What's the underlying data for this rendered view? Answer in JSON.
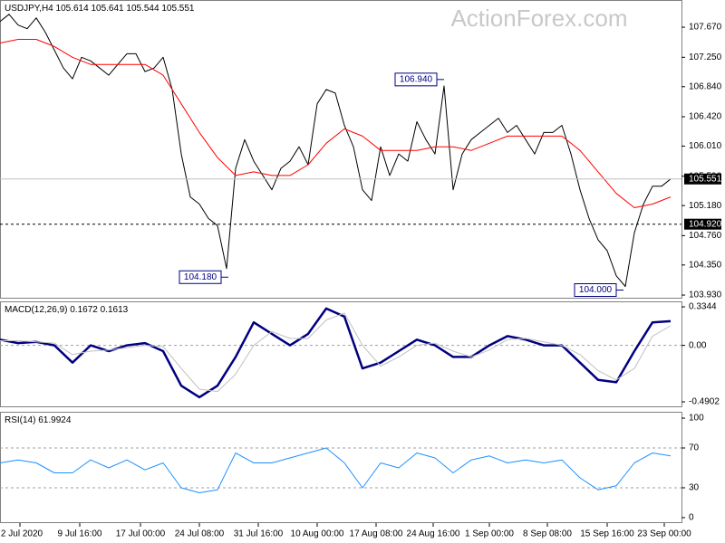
{
  "watermark": "ActionForex.com",
  "chart_data": [
    {
      "type": "line",
      "symbol": "USDJPY,H4",
      "ohlc": [
        105.614,
        105.641,
        105.544,
        105.551
      ],
      "xlim": [
        0,
        376
      ],
      "ylim": [
        103.88,
        108.05
      ],
      "yticks": [
        {
          "value": 107.67,
          "label": "107.670"
        },
        {
          "value": 107.25,
          "label": "107.250"
        },
        {
          "value": 106.84,
          "label": "106.840"
        },
        {
          "value": 106.42,
          "label": "106.420"
        },
        {
          "value": 106.01,
          "label": "106.010"
        },
        {
          "value": 105.59,
          "label": "105.590"
        },
        {
          "value": 105.18,
          "label": "105.180"
        },
        {
          "value": 104.76,
          "label": "104.760"
        },
        {
          "value": 104.35,
          "label": "104.350"
        },
        {
          "value": 103.93,
          "label": "103.930"
        }
      ],
      "current_price": 105.551,
      "level": {
        "value": 104.92,
        "label": "104.920"
      },
      "annotations": [
        {
          "x": 245,
          "value": 106.94,
          "label": "106.940"
        },
        {
          "x": 126,
          "value": 104.18,
          "label": "104.180"
        },
        {
          "x": 344,
          "value": 104,
          "label": "104.000"
        }
      ],
      "series": [
        {
          "color": "#000000",
          "x": [
            0,
            5,
            10,
            15,
            20,
            25,
            30,
            35,
            40,
            45,
            50,
            55,
            60,
            65,
            70,
            75,
            80,
            85,
            90,
            95,
            100,
            105,
            110,
            115,
            120,
            125,
            130,
            135,
            140,
            145,
            150,
            155,
            160,
            165,
            170,
            175,
            180,
            185,
            190,
            195,
            200,
            205,
            210,
            215,
            220,
            225,
            230,
            235,
            240,
            245,
            250,
            255,
            260,
            265,
            270,
            275,
            280,
            285,
            290,
            295,
            300,
            305,
            310,
            315,
            320,
            325,
            330,
            335,
            340,
            345,
            350,
            355,
            360,
            365,
            370
          ],
          "values": [
            107.75,
            107.85,
            107.7,
            107.65,
            107.8,
            107.6,
            107.35,
            107.1,
            106.95,
            107.25,
            107.2,
            107.1,
            107.0,
            107.15,
            107.3,
            107.3,
            107.05,
            107.1,
            107.25,
            106.8,
            105.9,
            105.3,
            105.2,
            105.0,
            104.9,
            104.3,
            105.7,
            106.1,
            105.8,
            105.6,
            105.4,
            105.7,
            105.8,
            106.0,
            105.75,
            106.6,
            106.8,
            106.75,
            106.3,
            106.0,
            105.4,
            105.25,
            106.0,
            105.6,
            105.9,
            105.8,
            106.35,
            106.1,
            105.9,
            106.85,
            105.4,
            105.9,
            106.1,
            106.2,
            106.3,
            106.4,
            106.2,
            106.3,
            106.1,
            105.9,
            106.2,
            106.2,
            106.3,
            105.9,
            105.4,
            105.0,
            104.7,
            104.55,
            104.2,
            104.05,
            104.8,
            105.2,
            105.45,
            105.45,
            105.551
          ]
        },
        {
          "color": "#ff0000",
          "x": [
            0,
            10,
            20,
            30,
            40,
            50,
            60,
            70,
            80,
            90,
            100,
            110,
            120,
            130,
            140,
            150,
            160,
            170,
            180,
            190,
            200,
            210,
            220,
            230,
            240,
            250,
            260,
            270,
            280,
            290,
            300,
            310,
            320,
            330,
            340,
            350,
            360,
            370
          ],
          "values": [
            107.45,
            107.5,
            107.5,
            107.4,
            107.25,
            107.15,
            107.15,
            107.15,
            107.15,
            107.0,
            106.6,
            106.2,
            105.85,
            105.6,
            105.65,
            105.6,
            105.6,
            105.75,
            106.05,
            106.25,
            106.15,
            105.95,
            105.95,
            105.95,
            106.0,
            106.0,
            105.95,
            106.05,
            106.15,
            106.15,
            106.15,
            106.15,
            105.95,
            105.65,
            105.35,
            105.15,
            105.2,
            105.3
          ]
        }
      ]
    },
    {
      "type": "line",
      "label": "MACD(12,26,9)",
      "readings": [
        0.1672,
        0.1613
      ],
      "xlim": [
        0,
        376
      ],
      "ylim": [
        -0.537,
        0.382
      ],
      "yticks": [
        0.3344,
        {
          "value": 0,
          "label": "0.00"
        },
        -0.4902
      ],
      "levels": [
        0
      ],
      "series": [
        {
          "color": "#000080",
          "x": [
            0,
            10,
            20,
            30,
            40,
            50,
            60,
            70,
            80,
            90,
            100,
            110,
            120,
            130,
            140,
            150,
            160,
            170,
            180,
            190,
            200,
            210,
            220,
            230,
            240,
            250,
            260,
            270,
            280,
            290,
            300,
            310,
            320,
            330,
            340,
            350,
            360,
            370
          ],
          "values": [
            0.05,
            0.02,
            0.03,
            0.0,
            -0.15,
            0.0,
            -0.05,
            0.0,
            0.02,
            -0.05,
            -0.35,
            -0.45,
            -0.35,
            -0.1,
            0.2,
            0.1,
            0.0,
            0.1,
            0.32,
            0.25,
            -0.2,
            -0.15,
            -0.05,
            0.05,
            0.0,
            -0.1,
            -0.1,
            0.0,
            0.08,
            0.05,
            0.0,
            0.0,
            -0.15,
            -0.3,
            -0.32,
            -0.05,
            0.2,
            0.21
          ]
        },
        {
          "color": "#c0c0c0",
          "x": [
            0,
            10,
            20,
            30,
            40,
            50,
            60,
            70,
            80,
            90,
            100,
            110,
            120,
            130,
            140,
            150,
            160,
            170,
            180,
            190,
            200,
            210,
            220,
            230,
            240,
            250,
            260,
            270,
            280,
            290,
            300,
            310,
            320,
            330,
            340,
            350,
            360,
            370
          ],
          "values": [
            0.04,
            0.04,
            0.03,
            0.02,
            -0.08,
            -0.05,
            -0.04,
            -0.02,
            0.0,
            -0.01,
            -0.2,
            -0.38,
            -0.4,
            -0.25,
            0.0,
            0.12,
            0.06,
            0.06,
            0.22,
            0.28,
            0.0,
            -0.18,
            -0.1,
            0.0,
            0.02,
            -0.05,
            -0.1,
            -0.04,
            0.05,
            0.06,
            0.03,
            0.0,
            -0.08,
            -0.22,
            -0.3,
            -0.2,
            0.08,
            0.17
          ]
        }
      ]
    },
    {
      "type": "line",
      "label": "RSI(14)",
      "readings": [
        61.9924
      ],
      "xlim": [
        0,
        376
      ],
      "ylim": [
        -5.5,
        106.4
      ],
      "yticks": [
        100,
        70,
        30,
        0
      ],
      "levels": [
        70,
        30
      ],
      "xticks": [
        {
          "value": 11,
          "label": "2 Jul 2020"
        },
        {
          "value": 44,
          "label": "9 Jul 16:00"
        },
        {
          "value": 77.5,
          "label": "17 Jul 00:00"
        },
        {
          "value": 110,
          "label": "24 Jul 08:00"
        },
        {
          "value": 142.5,
          "label": "31 Jul 16:00"
        },
        {
          "value": 175,
          "label": "10 Aug 00:00"
        },
        {
          "value": 207.5,
          "label": "17 Aug 08:00"
        },
        {
          "value": 239,
          "label": "24 Aug 16:00"
        },
        {
          "value": 270,
          "label": "1 Sep 00:00"
        },
        {
          "value": 302,
          "label": "8 Sep 08:00"
        },
        {
          "value": 335,
          "label": "15 Sep 16:00"
        },
        {
          "value": 366.5,
          "label": "23 Sep 00:00"
        }
      ],
      "series": [
        {
          "color": "#1e90ff",
          "x": [
            0,
            10,
            20,
            30,
            40,
            50,
            60,
            70,
            80,
            90,
            100,
            110,
            120,
            130,
            140,
            150,
            160,
            170,
            180,
            190,
            200,
            210,
            220,
            230,
            240,
            250,
            260,
            270,
            280,
            290,
            300,
            310,
            320,
            330,
            340,
            350,
            360,
            370
          ],
          "values": [
            55,
            58,
            55,
            45,
            45,
            58,
            50,
            58,
            48,
            55,
            30,
            25,
            28,
            65,
            55,
            55,
            60,
            65,
            70,
            55,
            30,
            55,
            50,
            65,
            60,
            45,
            58,
            62,
            55,
            58,
            55,
            58,
            40,
            28,
            32,
            55,
            65,
            61.9924
          ]
        }
      ]
    }
  ]
}
